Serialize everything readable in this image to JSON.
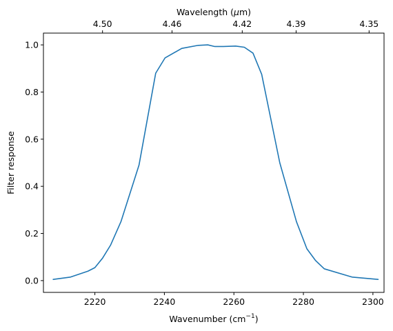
{
  "chart_data": {
    "type": "line",
    "xlabel": "Wavenumber",
    "xlabel_unit": "(cm",
    "xlabel_exp": "−1",
    "xlabel_close": ")",
    "ylabel": "Filter response",
    "top_xlabel": "Wavelength (",
    "top_xlabel_mu": "μ",
    "top_xlabel_unit": "m)",
    "xlim": [
      2205.2,
      2303.2
    ],
    "ylim": [
      -0.05,
      1.05
    ],
    "xticks": [
      2220,
      2240,
      2260,
      2280,
      2300
    ],
    "yticks": [
      0.0,
      0.2,
      0.4,
      0.6,
      0.8,
      1.0
    ],
    "top_ticks": [
      {
        "label": "4.50",
        "wavenumber": 2222.2
      },
      {
        "label": "4.46",
        "wavenumber": 2242.2
      },
      {
        "label": "4.42",
        "wavenumber": 2262.4
      },
      {
        "label": "4.39",
        "wavenumber": 2277.9
      },
      {
        "label": "4.35",
        "wavenumber": 2298.9
      }
    ],
    "grid": false,
    "line_color": "#1f77b4",
    "series": [
      {
        "x": [
          2208,
          2213,
          2218,
          2220,
          2222.2,
          2224.5,
          2227.5,
          2232.7,
          2237.5,
          2240.2,
          2245,
          2249.7,
          2252.5,
          2254.5,
          2257,
          2260.5,
          2263,
          2265.5,
          2268,
          2273.2,
          2278,
          2281,
          2283.5,
          2286,
          2294,
          2301.5
        ],
        "y": [
          0.005,
          0.015,
          0.04,
          0.055,
          0.095,
          0.15,
          0.25,
          0.49,
          0.88,
          0.945,
          0.985,
          0.998,
          1.0,
          0.993,
          0.993,
          0.995,
          0.99,
          0.965,
          0.875,
          0.5,
          0.25,
          0.135,
          0.085,
          0.05,
          0.015,
          0.005
        ]
      }
    ]
  }
}
